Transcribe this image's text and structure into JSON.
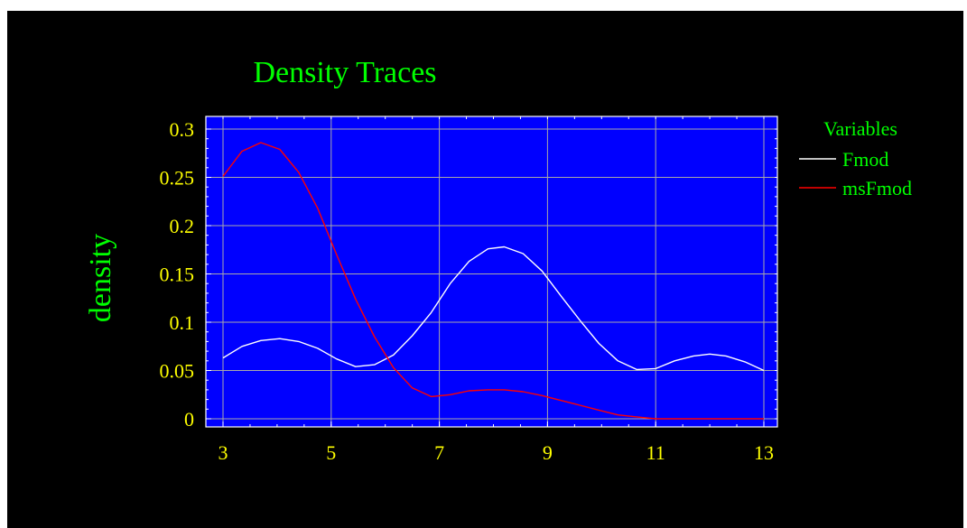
{
  "colors": {
    "background": "#000000",
    "plot_area": "#0000ff",
    "grid": "#a8a8a8",
    "title": "#00ff00",
    "axis_labels": "#ffff00",
    "legend_text": "#00ff00",
    "axis_frame": "#ffffff"
  },
  "chart_data": {
    "type": "line",
    "title": "Density Traces",
    "xlabel": "",
    "ylabel": "density",
    "xlim": [
      3,
      13
    ],
    "ylim": [
      0,
      0.3
    ],
    "x_ticks": [
      "3",
      "5",
      "7",
      "9",
      "11",
      "13"
    ],
    "y_ticks": [
      "0",
      "0.05",
      "0.1",
      "0.15",
      "0.2",
      "0.25",
      "0.3"
    ],
    "grid": true,
    "legend": {
      "title": "Variables",
      "position": "right"
    },
    "series": [
      {
        "name": "Fmod",
        "color": "#ffffff",
        "points": [
          [
            3.0,
            0.063
          ],
          [
            3.35,
            0.075
          ],
          [
            3.7,
            0.081
          ],
          [
            4.05,
            0.083
          ],
          [
            4.4,
            0.08
          ],
          [
            4.75,
            0.073
          ],
          [
            5.1,
            0.062
          ],
          [
            5.45,
            0.054
          ],
          [
            5.8,
            0.056
          ],
          [
            6.15,
            0.066
          ],
          [
            6.5,
            0.086
          ],
          [
            6.85,
            0.11
          ],
          [
            7.2,
            0.14
          ],
          [
            7.55,
            0.163
          ],
          [
            7.9,
            0.176
          ],
          [
            8.2,
            0.178
          ],
          [
            8.55,
            0.171
          ],
          [
            8.9,
            0.153
          ],
          [
            9.25,
            0.127
          ],
          [
            9.6,
            0.102
          ],
          [
            9.95,
            0.078
          ],
          [
            10.3,
            0.06
          ],
          [
            10.65,
            0.051
          ],
          [
            11.0,
            0.052
          ],
          [
            11.35,
            0.06
          ],
          [
            11.7,
            0.065
          ],
          [
            12.0,
            0.067
          ],
          [
            12.3,
            0.065
          ],
          [
            12.65,
            0.059
          ],
          [
            13.0,
            0.05
          ]
        ]
      },
      {
        "name": "msFmod",
        "color": "#ff0000",
        "points": [
          [
            3.0,
            0.251
          ],
          [
            3.35,
            0.277
          ],
          [
            3.7,
            0.286
          ],
          [
            4.05,
            0.279
          ],
          [
            4.4,
            0.255
          ],
          [
            4.75,
            0.218
          ],
          [
            5.1,
            0.17
          ],
          [
            5.45,
            0.124
          ],
          [
            5.8,
            0.085
          ],
          [
            6.15,
            0.053
          ],
          [
            6.5,
            0.032
          ],
          [
            6.85,
            0.023
          ],
          [
            7.2,
            0.025
          ],
          [
            7.55,
            0.029
          ],
          [
            7.9,
            0.03
          ],
          [
            8.2,
            0.03
          ],
          [
            8.55,
            0.028
          ],
          [
            8.9,
            0.024
          ],
          [
            9.25,
            0.019
          ],
          [
            9.6,
            0.014
          ],
          [
            9.95,
            0.009
          ],
          [
            10.3,
            0.004
          ],
          [
            10.65,
            0.002
          ],
          [
            11.0,
            0.0
          ],
          [
            11.35,
            0.0
          ],
          [
            11.7,
            0.0
          ],
          [
            12.0,
            0.0
          ],
          [
            12.3,
            0.0
          ],
          [
            12.65,
            0.0
          ],
          [
            13.0,
            0.0
          ]
        ]
      }
    ]
  }
}
